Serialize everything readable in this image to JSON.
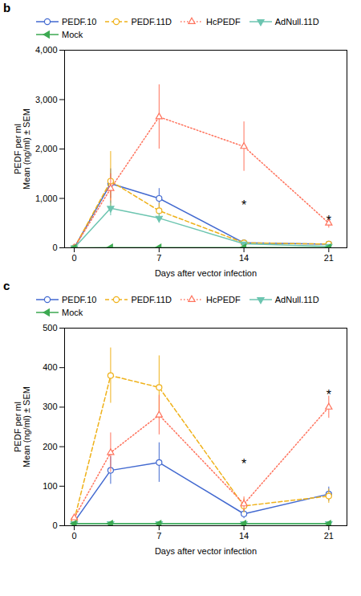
{
  "chart_data": [
    {
      "type": "line",
      "title": "b",
      "x": [
        0,
        3,
        7,
        14,
        21
      ],
      "xlabel": "Days after vector infection",
      "ylabel": "PEDF per ml\nMean (ng/ml) ± SEM",
      "xlim": [
        -0.8,
        22.5
      ],
      "xticks": [
        0,
        7,
        14,
        21
      ],
      "ylim": [
        0,
        4000
      ],
      "yticks": [
        0,
        {
          "value": 1000,
          "label": "1,000"
        },
        {
          "value": 2000,
          "label": "2,000"
        },
        {
          "value": 3000,
          "label": "3,000"
        },
        {
          "value": 4000,
          "label": "4,000"
        }
      ],
      "legend": "top",
      "series": [
        {
          "name": "PEDF.10",
          "values": [
            0,
            1300,
            1000,
            100,
            75
          ],
          "yerr": [
            0,
            300,
            200,
            40,
            20
          ],
          "line_style": "solid",
          "marker": "open-circle"
        },
        {
          "name": "PEDF.11D",
          "values": [
            0,
            1350,
            750,
            100,
            75
          ],
          "yerr": [
            0,
            600,
            150,
            50,
            20
          ],
          "line_style": "dashed",
          "marker": "open-circle"
        },
        {
          "name": "HcPEDF",
          "values": [
            0,
            1200,
            2650,
            2050,
            500
          ],
          "yerr": [
            0,
            300,
            650,
            500,
            100
          ],
          "line_style": "dotted",
          "marker": "open-triangle-up"
        },
        {
          "name": "AdNull.11D",
          "values": [
            0,
            800,
            600,
            80,
            30
          ],
          "yerr": [
            0,
            150,
            100,
            20,
            10
          ],
          "line_style": "solid",
          "marker": "triangle-down"
        },
        {
          "name": "Mock",
          "values": [
            0,
            5,
            5,
            5,
            5
          ],
          "yerr": [
            0,
            2,
            2,
            2,
            2
          ],
          "line_style": "solid",
          "marker": "triangle-left"
        }
      ],
      "annotations": [
        {
          "text": "*",
          "x": 14,
          "y": 850
        },
        {
          "text": "*",
          "x": 21,
          "y": 550
        }
      ]
    },
    {
      "type": "line",
      "title": "c",
      "x": [
        0,
        3,
        7,
        14,
        21
      ],
      "xlabel": "Days after vector infection",
      "ylabel": "PEDF per ml\nMean (ng/ml) ± SEM",
      "xlim": [
        -0.8,
        22.5
      ],
      "xticks": [
        0,
        7,
        14,
        21
      ],
      "ylim": [
        0,
        500
      ],
      "yticks": [
        0,
        100,
        200,
        300,
        400,
        500
      ],
      "legend": "top",
      "series": [
        {
          "name": "PEDF.10",
          "values": [
            10,
            140,
            160,
            30,
            80
          ],
          "yerr": [
            5,
            35,
            50,
            12,
            18
          ],
          "line_style": "solid",
          "marker": "open-circle"
        },
        {
          "name": "PEDF.11D",
          "values": [
            15,
            380,
            350,
            50,
            75
          ],
          "yerr": [
            5,
            70,
            80,
            18,
            18
          ],
          "line_style": "dashed",
          "marker": "open-circle"
        },
        {
          "name": "HcPEDF",
          "values": [
            20,
            185,
            280,
            55,
            300
          ],
          "yerr": [
            5,
            50,
            50,
            18,
            28
          ],
          "line_style": "dotted",
          "marker": "open-triangle-up"
        },
        {
          "name": "AdNull.11D",
          "values": [
            5,
            5,
            5,
            5,
            5
          ],
          "yerr": [
            2,
            2,
            2,
            2,
            2
          ],
          "line_style": "solid",
          "marker": "triangle-down"
        },
        {
          "name": "Mock",
          "values": [
            5,
            5,
            5,
            5,
            5
          ],
          "yerr": [
            2,
            2,
            2,
            2,
            2
          ],
          "line_style": "solid",
          "marker": "triangle-left"
        }
      ],
      "annotations": [
        {
          "text": "*",
          "x": 14,
          "y": 155
        },
        {
          "text": "*",
          "x": 21,
          "y": 330
        }
      ]
    }
  ]
}
